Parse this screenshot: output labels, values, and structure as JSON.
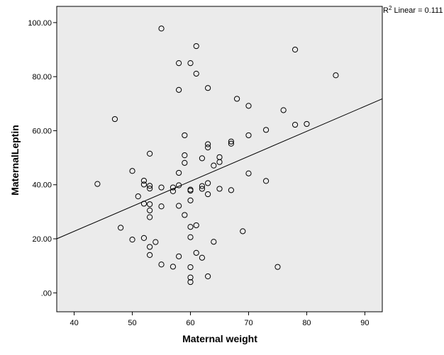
{
  "chart_data": {
    "type": "scatter",
    "title": "",
    "xlabel": "Maternal weight",
    "ylabel": "MaternalLeptin",
    "xlim": [
      37,
      93
    ],
    "ylim": [
      -7,
      106
    ],
    "xticks": [
      40,
      50,
      60,
      70,
      80,
      90
    ],
    "xtick_labels": [
      "40",
      "50",
      "60",
      "70",
      "80",
      "90"
    ],
    "yticks": [
      0,
      20,
      40,
      60,
      80,
      100
    ],
    "ytick_labels": [
      ".00",
      "20.00",
      "40.00",
      "60.00",
      "80.00",
      "100.00"
    ],
    "grid": false,
    "plot_background": "#ebebeb",
    "marker_color": "#000000",
    "fit_line": {
      "label_prefix": "R",
      "label_sup": "2",
      "label_text": " Linear = 0.111",
      "x": [
        37,
        93
      ],
      "y": [
        20.0,
        71.8
      ]
    },
    "points": [
      {
        "x": 44,
        "y": 40.3
      },
      {
        "x": 47,
        "y": 64.3
      },
      {
        "x": 48,
        "y": 24.1
      },
      {
        "x": 50,
        "y": 45.1
      },
      {
        "x": 50,
        "y": 19.7
      },
      {
        "x": 51,
        "y": 35.7
      },
      {
        "x": 52,
        "y": 41.5
      },
      {
        "x": 52,
        "y": 40.1
      },
      {
        "x": 52,
        "y": 33.0
      },
      {
        "x": 52,
        "y": 20.3
      },
      {
        "x": 53,
        "y": 51.5
      },
      {
        "x": 53,
        "y": 39.6
      },
      {
        "x": 53,
        "y": 38.6
      },
      {
        "x": 53,
        "y": 32.8
      },
      {
        "x": 53,
        "y": 30.5
      },
      {
        "x": 53,
        "y": 28.0
      },
      {
        "x": 53,
        "y": 17.0
      },
      {
        "x": 53,
        "y": 14.0
      },
      {
        "x": 54,
        "y": 18.8
      },
      {
        "x": 55,
        "y": 97.8
      },
      {
        "x": 55,
        "y": 39.0
      },
      {
        "x": 55,
        "y": 32.0
      },
      {
        "x": 55,
        "y": 10.5
      },
      {
        "x": 57,
        "y": 39.0
      },
      {
        "x": 57,
        "y": 37.6
      },
      {
        "x": 57,
        "y": 9.7
      },
      {
        "x": 58,
        "y": 85.0
      },
      {
        "x": 58,
        "y": 75.1
      },
      {
        "x": 58,
        "y": 44.4
      },
      {
        "x": 58,
        "y": 39.8
      },
      {
        "x": 58,
        "y": 32.2
      },
      {
        "x": 58,
        "y": 13.5
      },
      {
        "x": 59,
        "y": 58.3
      },
      {
        "x": 59,
        "y": 50.9
      },
      {
        "x": 59,
        "y": 48.1
      },
      {
        "x": 59,
        "y": 28.8
      },
      {
        "x": 60,
        "y": 85.0
      },
      {
        "x": 60,
        "y": 38.2
      },
      {
        "x": 60,
        "y": 37.8
      },
      {
        "x": 60,
        "y": 34.2
      },
      {
        "x": 60,
        "y": 24.4
      },
      {
        "x": 60,
        "y": 20.6
      },
      {
        "x": 60,
        "y": 9.5
      },
      {
        "x": 60,
        "y": 5.7
      },
      {
        "x": 60,
        "y": 4.0
      },
      {
        "x": 61,
        "y": 91.3
      },
      {
        "x": 61,
        "y": 81.1
      },
      {
        "x": 61,
        "y": 25.0
      },
      {
        "x": 61,
        "y": 14.8
      },
      {
        "x": 62,
        "y": 49.8
      },
      {
        "x": 62,
        "y": 39.5
      },
      {
        "x": 62,
        "y": 38.5
      },
      {
        "x": 62,
        "y": 13.0
      },
      {
        "x": 63,
        "y": 75.8
      },
      {
        "x": 63,
        "y": 55.0
      },
      {
        "x": 63,
        "y": 53.8
      },
      {
        "x": 63,
        "y": 40.6
      },
      {
        "x": 63,
        "y": 36.5
      },
      {
        "x": 63,
        "y": 6.1
      },
      {
        "x": 64,
        "y": 47.1
      },
      {
        "x": 64,
        "y": 18.9
      },
      {
        "x": 65,
        "y": 50.2
      },
      {
        "x": 65,
        "y": 48.4
      },
      {
        "x": 65,
        "y": 38.5
      },
      {
        "x": 67,
        "y": 56.0
      },
      {
        "x": 67,
        "y": 55.2
      },
      {
        "x": 67,
        "y": 38.0
      },
      {
        "x": 68,
        "y": 71.8
      },
      {
        "x": 69,
        "y": 22.8
      },
      {
        "x": 70,
        "y": 69.2
      },
      {
        "x": 70,
        "y": 58.3
      },
      {
        "x": 70,
        "y": 44.2
      },
      {
        "x": 73,
        "y": 60.3
      },
      {
        "x": 73,
        "y": 41.4
      },
      {
        "x": 75,
        "y": 9.6
      },
      {
        "x": 76,
        "y": 67.6
      },
      {
        "x": 78,
        "y": 90.0
      },
      {
        "x": 78,
        "y": 62.2
      },
      {
        "x": 80,
        "y": 62.5
      },
      {
        "x": 85,
        "y": 80.5
      }
    ]
  }
}
